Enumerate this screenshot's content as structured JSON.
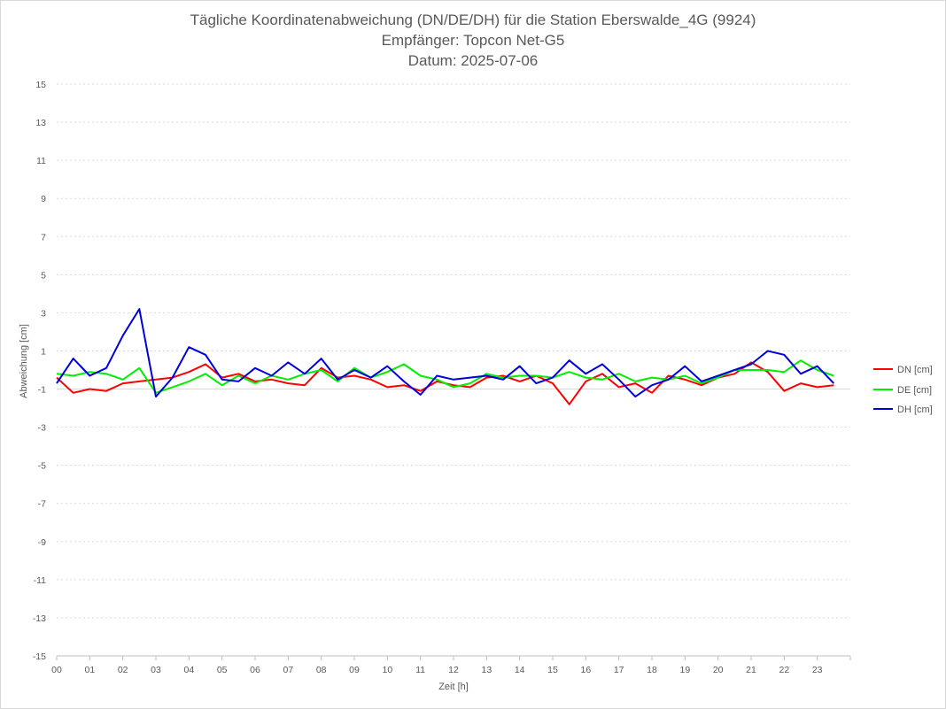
{
  "chart_data": {
    "type": "line",
    "title": "Tägliche Koordinatenabweichung (DN/DE/DH) für die Station Eberswalde_4G (9924)",
    "subtitle": "Empfänger: Topcon Net-G5",
    "date_line": "Datum: 2025-07-06",
    "xlabel": "Zeit [h]",
    "ylabel": "Abweichung [cm]",
    "xlim": [
      0,
      24
    ],
    "ylim": [
      -15,
      15
    ],
    "x_tick_labels": [
      "00",
      "01",
      "02",
      "03",
      "04",
      "05",
      "06",
      "07",
      "08",
      "09",
      "10",
      "11",
      "12",
      "13",
      "14",
      "15",
      "16",
      "17",
      "18",
      "19",
      "20",
      "21",
      "22",
      "23"
    ],
    "y_ticks": [
      15,
      13,
      11,
      9,
      7,
      5,
      3,
      1,
      -1,
      -3,
      -5,
      -7,
      -9,
      -11,
      -13,
      -15
    ],
    "grid": true,
    "legend_position": "right",
    "x": [
      0.0,
      0.5,
      1.0,
      1.5,
      2.0,
      2.5,
      3.0,
      3.5,
      4.0,
      4.5,
      5.0,
      5.5,
      6.0,
      6.5,
      7.0,
      7.5,
      8.0,
      8.5,
      9.0,
      9.5,
      10.0,
      10.5,
      11.0,
      11.5,
      12.0,
      12.5,
      13.0,
      13.5,
      14.0,
      14.5,
      15.0,
      15.5,
      16.0,
      16.5,
      17.0,
      17.5,
      18.0,
      18.5,
      19.0,
      19.5,
      20.0,
      20.5,
      21.0,
      21.5,
      22.0,
      22.5,
      23.0,
      23.5
    ],
    "series": [
      {
        "name": "DN [cm]",
        "color": "#ff0000",
        "values": [
          -0.4,
          -1.2,
          -1.0,
          -1.1,
          -0.7,
          -0.6,
          -0.5,
          -0.4,
          -0.1,
          0.3,
          -0.4,
          -0.2,
          -0.6,
          -0.5,
          -0.7,
          -0.8,
          0.1,
          -0.4,
          -0.3,
          -0.5,
          -0.9,
          -0.8,
          -1.1,
          -0.6,
          -0.8,
          -0.9,
          -0.4,
          -0.3,
          -0.6,
          -0.3,
          -0.7,
          -1.8,
          -0.6,
          -0.2,
          -0.9,
          -0.7,
          -1.2,
          -0.3,
          -0.5,
          -0.8,
          -0.4,
          -0.2,
          0.4,
          -0.1,
          -1.1,
          -0.7,
          -0.9,
          -0.8
        ]
      },
      {
        "name": "DE [cm]",
        "color": "#00ee00",
        "values": [
          -0.2,
          -0.3,
          -0.1,
          -0.2,
          -0.5,
          0.1,
          -1.2,
          -0.9,
          -0.6,
          -0.2,
          -0.8,
          -0.3,
          -0.7,
          -0.3,
          -0.5,
          -0.2,
          0.0,
          -0.6,
          0.1,
          -0.4,
          -0.1,
          0.3,
          -0.3,
          -0.5,
          -0.9,
          -0.7,
          -0.2,
          -0.4,
          -0.3,
          -0.3,
          -0.4,
          -0.1,
          -0.4,
          -0.5,
          -0.2,
          -0.6,
          -0.4,
          -0.5,
          -0.3,
          -0.7,
          -0.4,
          0.0,
          0.0,
          0.0,
          -0.1,
          0.5,
          0.0,
          -0.3
        ]
      },
      {
        "name": "DH [cm]",
        "color": "#0000dd",
        "values": [
          -0.7,
          0.6,
          -0.3,
          0.1,
          1.8,
          3.2,
          -1.4,
          -0.4,
          1.2,
          0.8,
          -0.5,
          -0.6,
          0.1,
          -0.3,
          0.4,
          -0.2,
          0.6,
          -0.5,
          0.0,
          -0.4,
          0.2,
          -0.6,
          -1.3,
          -0.3,
          -0.5,
          -0.4,
          -0.3,
          -0.5,
          0.2,
          -0.7,
          -0.4,
          0.5,
          -0.2,
          0.3,
          -0.5,
          -1.4,
          -0.8,
          -0.5,
          0.2,
          -0.6,
          -0.3,
          0.0,
          0.3,
          1.0,
          0.8,
          -0.2,
          0.2,
          -0.7
        ]
      }
    ]
  }
}
